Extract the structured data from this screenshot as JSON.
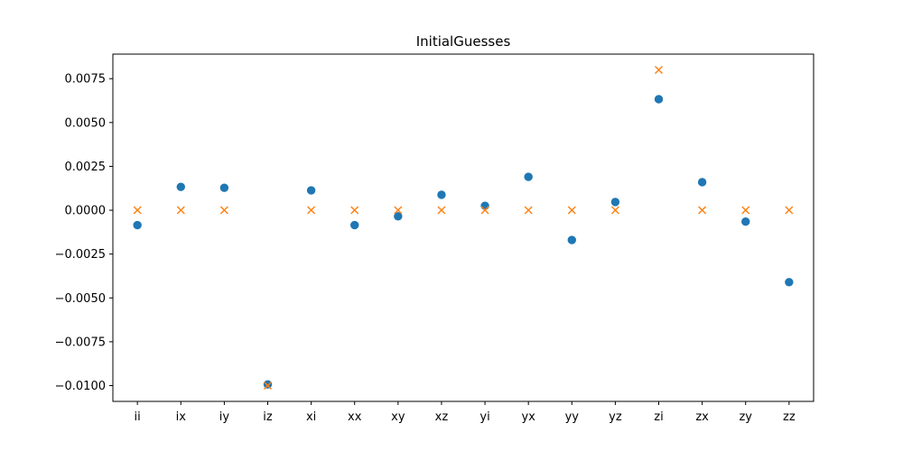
{
  "chart_data": {
    "type": "scatter",
    "title": "InitialGuesses",
    "xlabel": "",
    "ylabel": "",
    "categories": [
      "ii",
      "ix",
      "iy",
      "iz",
      "xi",
      "xx",
      "xy",
      "xz",
      "yi",
      "yx",
      "yy",
      "yz",
      "zi",
      "zx",
      "zy",
      "zz"
    ],
    "series": [
      {
        "marker": "circle",
        "color": "#1f77b4",
        "values": [
          -0.00085,
          0.00133,
          0.00128,
          -0.00993,
          0.00113,
          -0.00085,
          -0.00035,
          0.00088,
          0.00025,
          0.0019,
          -0.0017,
          0.00047,
          0.00633,
          0.0016,
          -0.00065,
          -0.0041
        ]
      },
      {
        "marker": "x",
        "color": "#ff7f0e",
        "values": [
          0.0,
          0.0,
          0.0,
          -0.01,
          0.0,
          0.0,
          0.0,
          0.0,
          0.0,
          0.0,
          0.0,
          0.0,
          0.008,
          0.0,
          0.0,
          0.0
        ]
      }
    ],
    "ylim": [
      -0.0109,
      0.0089
    ],
    "yticks": [
      -0.01,
      -0.0075,
      -0.005,
      -0.0025,
      0.0,
      0.0025,
      0.005,
      0.0075
    ],
    "ytick_labels": [
      "−0.0100",
      "−0.0075",
      "−0.0050",
      "−0.0025",
      "0.0000",
      "0.0025",
      "0.0050",
      "0.0075"
    ],
    "grid": false,
    "legend": "none"
  }
}
